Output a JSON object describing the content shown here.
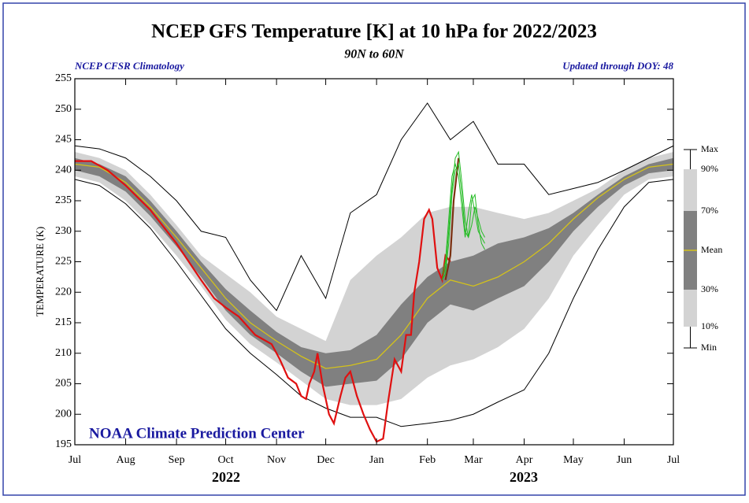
{
  "chart_data": {
    "type": "line",
    "title": "NCEP GFS Temperature [K] at 10 hPa for 2022/2023",
    "subtitle": "90N to 60N",
    "annotations": [
      "NCEP CFSR Climatology",
      "Updated through DOY:  48",
      "NOAA Climate Prediction Center"
    ],
    "y_label": "TEMPERATURE (K)",
    "year_labels": [
      "2022",
      "2023"
    ],
    "xlim": [
      0,
      365
    ],
    "xticks": [
      {
        "value": 0,
        "label": "Jul"
      },
      {
        "value": 31,
        "label": "Aug"
      },
      {
        "value": 62,
        "label": "Sep"
      },
      {
        "value": 92,
        "label": "Oct"
      },
      {
        "value": 123,
        "label": "Nov"
      },
      {
        "value": 153,
        "label": "Dec"
      },
      {
        "value": 184,
        "label": "Jan"
      },
      {
        "value": 215,
        "label": "Feb"
      },
      {
        "value": 243,
        "label": "Mar"
      },
      {
        "value": 274,
        "label": "Apr"
      },
      {
        "value": 304,
        "label": "May"
      },
      {
        "value": 335,
        "label": "Jun"
      },
      {
        "value": 365,
        "label": "Jul"
      }
    ],
    "ylim": [
      195,
      255
    ],
    "yticks": [
      195,
      200,
      205,
      210,
      215,
      220,
      225,
      230,
      235,
      240,
      245,
      250,
      255
    ],
    "x": [
      0,
      15,
      31,
      46,
      62,
      77,
      92,
      107,
      123,
      138,
      153,
      168,
      184,
      199,
      215,
      229,
      243,
      258,
      274,
      289,
      304,
      319,
      335,
      350,
      365
    ],
    "series": [
      {
        "name": "Max",
        "color": "#000000",
        "values": [
          244,
          243.5,
          242,
          239,
          235,
          230,
          229,
          222,
          217,
          226,
          219,
          233,
          236,
          245,
          251,
          245,
          248,
          241,
          241,
          236,
          237,
          238,
          240,
          242,
          244
        ]
      },
      {
        "name": "90%",
        "color": "#d3d3d3",
        "values": [
          243,
          242,
          240,
          236,
          231,
          226,
          223,
          220,
          216,
          214,
          212,
          222,
          226,
          229,
          233,
          234,
          234,
          233,
          232,
          233,
          235,
          237,
          240,
          242,
          243
        ]
      },
      {
        "name": "70%",
        "color": "#808080",
        "values": [
          242,
          241,
          239,
          235,
          230,
          225,
          220.5,
          217,
          213.5,
          211,
          210,
          210.5,
          213,
          218,
          222.5,
          225,
          226,
          228,
          229,
          230.5,
          233,
          236,
          239,
          241,
          242
        ]
      },
      {
        "name": "Mean",
        "color": "#d4c21a",
        "values": [
          241,
          240.5,
          238,
          234,
          229,
          224,
          219,
          215,
          212,
          209.5,
          207.5,
          208,
          209,
          213,
          219,
          222,
          221,
          222.5,
          225,
          228,
          232,
          235.5,
          238.5,
          240.5,
          241
        ]
      },
      {
        "name": "30%",
        "color": "#808080",
        "values": [
          240,
          239,
          236.5,
          232.5,
          227.5,
          222.5,
          217,
          213,
          210,
          207,
          204.5,
          205,
          205.5,
          209,
          215,
          218,
          217,
          219,
          221,
          225,
          230,
          234,
          237.5,
          239.5,
          240
        ]
      },
      {
        "name": "10%",
        "color": "#d3d3d3",
        "values": [
          239,
          238,
          235,
          231,
          226,
          221,
          215.5,
          211.5,
          208.5,
          205.5,
          202.5,
          201.5,
          201.5,
          202.5,
          206,
          208,
          209,
          211,
          214,
          219,
          226,
          231,
          236,
          238.5,
          239
        ]
      },
      {
        "name": "Min",
        "color": "#000000",
        "values": [
          238.5,
          237.5,
          234.5,
          230.5,
          225,
          219.5,
          214,
          210,
          206.5,
          203,
          201,
          199.5,
          199.5,
          198,
          198.5,
          199,
          200,
          202,
          204,
          210,
          219,
          227,
          234,
          238,
          238.5
        ]
      },
      {
        "color": "#e01010",
        "x": [
          0,
          10,
          20,
          31,
          46,
          62,
          77,
          85,
          92,
          100,
          110,
          120,
          125,
          130,
          135,
          138,
          141,
          143,
          146,
          148,
          151,
          155,
          158,
          162,
          165,
          168,
          172,
          176,
          180,
          184,
          188,
          191,
          195,
          199,
          202,
          205,
          207,
          210,
          213,
          216,
          218,
          221,
          224,
          226,
          229
        ],
        "values": [
          241.5,
          241.5,
          240,
          237.5,
          233.5,
          228,
          222,
          219,
          217.5,
          216,
          213,
          211.5,
          209,
          206,
          205,
          203,
          202.5,
          205,
          207,
          210,
          205,
          200,
          198.5,
          203,
          206,
          207,
          203,
          200,
          197.5,
          195.5,
          196,
          202,
          209,
          207,
          213,
          213,
          220,
          225,
          232,
          233.5,
          232,
          224,
          222,
          226,
          225
        ]
      },
      {
        "color": "#7a3010",
        "x": [
          226,
          229,
          231,
          234
        ],
        "values": [
          222,
          226,
          235,
          242
        ]
      },
      {
        "color": "#22bb22",
        "x": [
          224,
          226,
          228,
          230,
          232,
          234,
          236,
          238,
          240,
          242,
          244,
          246,
          248,
          250
        ],
        "values": [
          222,
          224,
          230,
          237,
          242,
          243,
          238,
          232,
          229,
          235,
          236,
          231,
          228,
          227
        ]
      },
      {
        "color": "#22bb22",
        "x": [
          224,
          226,
          228,
          230,
          232,
          234,
          236,
          238,
          240,
          242,
          244,
          246,
          248,
          250
        ],
        "values": [
          223,
          225,
          232,
          239,
          241,
          239,
          234,
          229,
          233,
          236,
          233,
          230,
          229,
          228
        ]
      },
      {
        "color": "#22bb22",
        "x": [
          224,
          226,
          228,
          230,
          232,
          234,
          236,
          238,
          240,
          242,
          244,
          246,
          248,
          250
        ],
        "values": [
          222,
          223,
          228,
          236,
          240,
          241,
          236,
          230,
          229,
          231,
          234,
          232,
          230,
          229
        ]
      }
    ]
  }
}
